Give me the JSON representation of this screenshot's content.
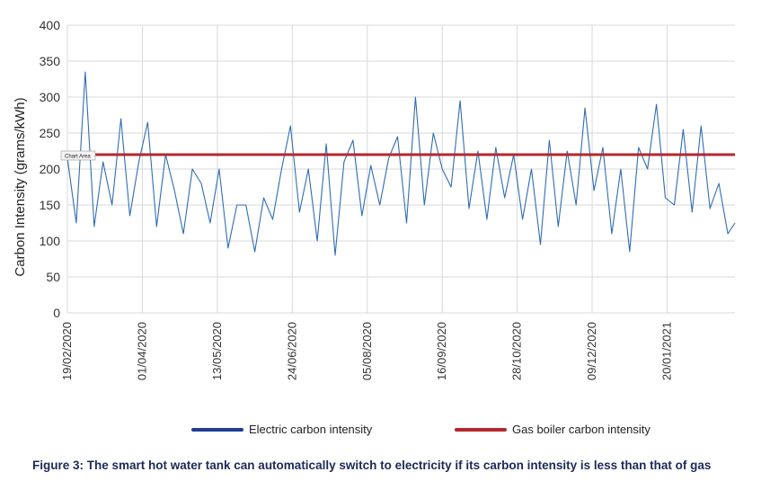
{
  "chart_data": {
    "type": "line",
    "ylabel": "Carbon Intensity (grams/kWh)",
    "xlabel": "",
    "ylim": [
      0,
      400
    ],
    "yticks": [
      0,
      50,
      100,
      150,
      200,
      250,
      300,
      350,
      400
    ],
    "x_start": "19/02/2020",
    "x_end": "27/02/2021",
    "xticks": [
      "19/02/2020",
      "01/04/2020",
      "13/05/2020",
      "24/06/2020",
      "05/08/2020",
      "16/09/2020",
      "28/10/2020",
      "09/12/2020",
      "20/01/2021"
    ],
    "grid": true,
    "legend_position": "bottom",
    "tooltip": "Chart Area",
    "series": [
      {
        "name": "Electric carbon intensity",
        "color": "#2f6db3",
        "x": [
          "19/02/2020",
          "24/02/2020",
          "29/02/2020",
          "05/03/2020",
          "10/03/2020",
          "15/03/2020",
          "20/03/2020",
          "25/03/2020",
          "30/03/2020",
          "04/04/2020",
          "09/04/2020",
          "14/04/2020",
          "19/04/2020",
          "24/04/2020",
          "29/04/2020",
          "04/05/2020",
          "09/05/2020",
          "14/05/2020",
          "19/05/2020",
          "24/05/2020",
          "29/05/2020",
          "03/06/2020",
          "08/06/2020",
          "13/06/2020",
          "18/06/2020",
          "23/06/2020",
          "28/06/2020",
          "03/07/2020",
          "08/07/2020",
          "13/07/2020",
          "18/07/2020",
          "23/07/2020",
          "28/07/2020",
          "02/08/2020",
          "07/08/2020",
          "12/08/2020",
          "17/08/2020",
          "22/08/2020",
          "27/08/2020",
          "01/09/2020",
          "06/09/2020",
          "11/09/2020",
          "16/09/2020",
          "21/09/2020",
          "26/09/2020",
          "01/10/2020",
          "06/10/2020",
          "11/10/2020",
          "16/10/2020",
          "21/10/2020",
          "26/10/2020",
          "31/10/2020",
          "05/11/2020",
          "10/11/2020",
          "15/11/2020",
          "20/11/2020",
          "25/11/2020",
          "30/11/2020",
          "05/12/2020",
          "10/12/2020",
          "15/12/2020",
          "20/12/2020",
          "25/12/2020",
          "30/12/2020",
          "04/01/2021",
          "09/01/2021",
          "14/01/2021",
          "19/01/2021",
          "24/01/2021",
          "29/01/2021",
          "03/02/2021",
          "08/02/2021",
          "13/02/2021",
          "18/02/2021",
          "23/02/2021",
          "27/02/2021"
        ],
        "values": [
          215,
          125,
          335,
          120,
          210,
          150,
          270,
          135,
          210,
          265,
          120,
          220,
          170,
          110,
          200,
          180,
          125,
          200,
          90,
          150,
          150,
          85,
          160,
          130,
          200,
          260,
          140,
          200,
          100,
          235,
          80,
          210,
          240,
          135,
          205,
          150,
          215,
          245,
          125,
          300,
          150,
          250,
          200,
          175,
          295,
          145,
          225,
          130,
          230,
          160,
          220,
          130,
          200,
          95,
          240,
          120,
          225,
          150,
          285,
          170,
          230,
          110,
          200,
          85,
          230,
          200,
          290,
          160,
          150,
          255,
          140,
          260,
          145,
          180,
          110,
          125
        ]
      },
      {
        "name": "Gas boiler carbon intensity",
        "color": "#b3282d",
        "x": [
          "19/02/2020",
          "27/02/2021"
        ],
        "values": [
          220,
          220
        ]
      }
    ]
  },
  "caption": "Figure 3: The smart hot water tank can automatically switch to electricity if its carbon intensity is less than that of gas"
}
